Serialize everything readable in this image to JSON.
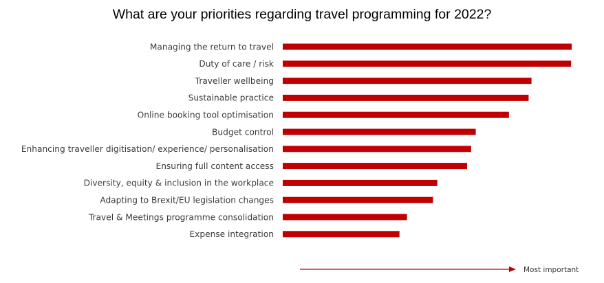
{
  "chart_data": {
    "type": "bar",
    "orientation": "horizontal",
    "title": "What are your priorities regarding travel programming for 2022?",
    "categories": [
      "Managing the return to travel",
      "Duty of care / risk",
      "Traveller wellbeing",
      "Sustainable practice",
      "Online booking tool optimisation",
      "Budget control",
      "Enhancing traveller digitisation/ experience/ personalisation",
      "Ensuring full content access",
      "Diversity, equity & inclusion in the workplace",
      "Adapting to Brexit/EU legislation changes",
      "Travel & Meetings programme consolidation",
      "Expense integration"
    ],
    "values": [
      100,
      99.8,
      86.1,
      85.1,
      78.3,
      66.8,
      65.2,
      63.8,
      53.5,
      52.0,
      43.0,
      40.4
    ],
    "xlim": [
      0,
      100
    ],
    "grid": false,
    "legend": "none",
    "bar_color": "#c00000",
    "arrow_label": "Most important",
    "arrow_color": "#c00000"
  }
}
